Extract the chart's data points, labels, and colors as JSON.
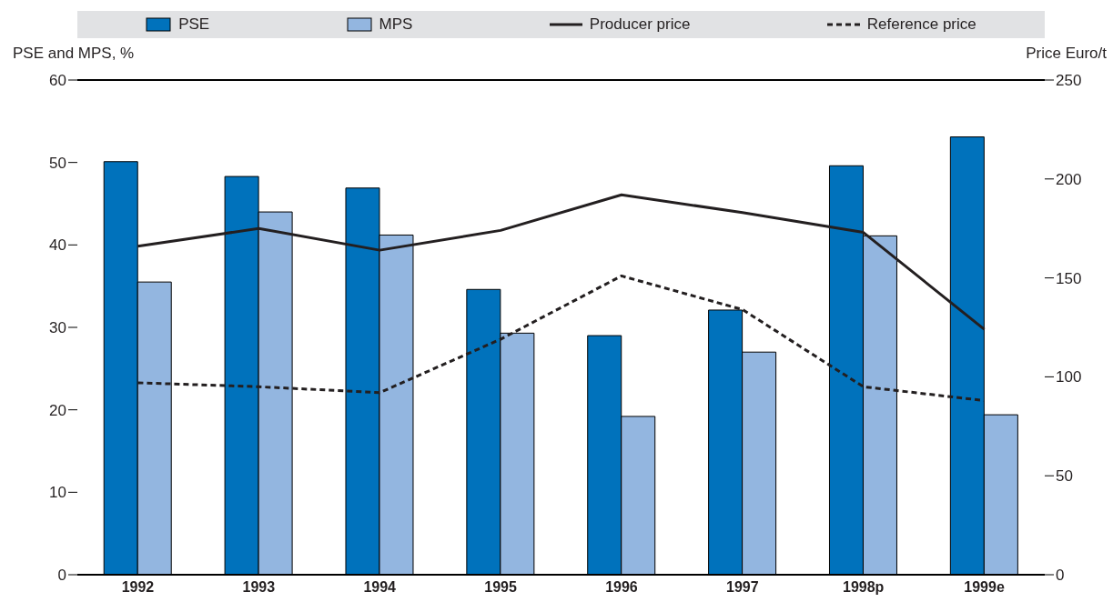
{
  "chart_data": {
    "type": "bar",
    "categories": [
      "1992",
      "1993",
      "1994",
      "1995",
      "1996",
      "1997",
      "1998p",
      "1999e"
    ],
    "ylabel": "PSE and MPS, %",
    "y2label": "Price Euro/t",
    "ylim": [
      0,
      60
    ],
    "yticks": [
      0,
      10,
      20,
      30,
      40,
      50,
      60
    ],
    "y2lim": [
      0,
      250
    ],
    "y2ticks": [
      0,
      50,
      100,
      150,
      200,
      250
    ],
    "legend": "top",
    "series": [
      {
        "name": "PSE",
        "color": "#0072bc",
        "values": [
          50.1,
          48.3,
          46.9,
          34.6,
          29.0,
          32.1,
          49.6,
          53.1
        ]
      },
      {
        "name": "MPS",
        "color": "#93b6e0",
        "values": [
          35.5,
          44.0,
          41.2,
          29.3,
          19.2,
          27.0,
          41.1,
          19.4
        ]
      },
      {
        "name": "Producer price",
        "type": "line",
        "axis": "y2",
        "color": "#231f20",
        "line_style": "solid",
        "values": [
          166,
          175,
          164,
          174,
          192,
          183,
          173,
          124
        ]
      },
      {
        "name": "Reference price",
        "type": "line",
        "axis": "y2",
        "color": "#231f20",
        "line_style": "dashed",
        "values": [
          97,
          95,
          92,
          119,
          151,
          134,
          95,
          88
        ]
      }
    ]
  }
}
